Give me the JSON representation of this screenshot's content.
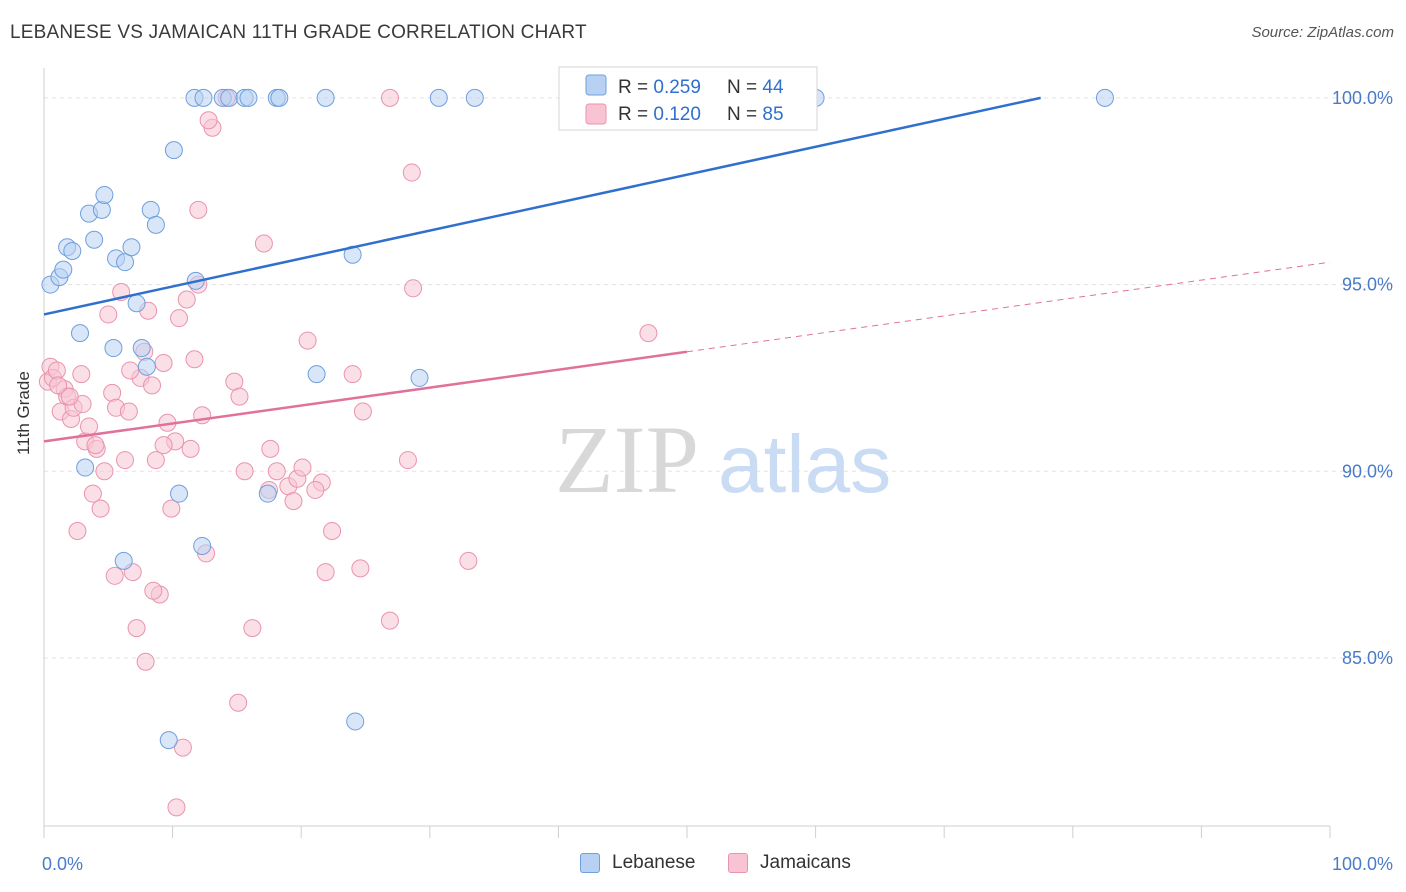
{
  "title": "LEBANESE VS JAMAICAN 11TH GRADE CORRELATION CHART",
  "source": "Source: ZipAtlas.com",
  "watermark": {
    "zip": "ZIP",
    "atlas": "atlas"
  },
  "colors": {
    "lebanese_fill": "#b8d1f3",
    "lebanese_stroke": "#6f9fdd",
    "lebanese_line": "#2f6fce",
    "jamaicans_fill": "#f8c4d3",
    "jamaicans_stroke": "#ea93ae",
    "jamaicans_line": "#e0719a",
    "tick_text": "#4a7bc8",
    "grid": "#e3e3e3"
  },
  "legend": {
    "rows": [
      {
        "r_label": "R = ",
        "r_value": "0.259",
        "n_label": "N = ",
        "n_value": "44"
      },
      {
        "r_label": "R = ",
        "r_value": "0.120",
        "n_label": "N = ",
        "n_value": "85"
      }
    ]
  },
  "chart_data": {
    "type": "scatter",
    "title": "LEBANESE VS JAMAICAN 11TH GRADE CORRELATION CHART",
    "xlabel": "",
    "ylabel": "11th Grade",
    "xlim": [
      0,
      100
    ],
    "ylim": [
      80.5,
      100.8
    ],
    "x_tick_labels": [
      "0.0%",
      "100.0%"
    ],
    "y_ticks": [
      85,
      90,
      95,
      100
    ],
    "y_tick_labels": [
      "85.0%",
      "90.0%",
      "95.0%",
      "100.0%"
    ],
    "grid": true,
    "legend_position": "top-center",
    "series": [
      {
        "name": "Lebanese",
        "r": 0.259,
        "n": 44,
        "trend": {
          "x0": 0,
          "y0": 94.2,
          "x1": 77.5,
          "y1": 100.0,
          "dashed_to": null
        },
        "points": [
          [
            0.5,
            95.0
          ],
          [
            1.2,
            95.2
          ],
          [
            1.5,
            95.4
          ],
          [
            1.8,
            96.0
          ],
          [
            2.2,
            95.9
          ],
          [
            2.8,
            93.7
          ],
          [
            3.2,
            90.1
          ],
          [
            3.5,
            96.9
          ],
          [
            3.9,
            96.2
          ],
          [
            4.5,
            97.0
          ],
          [
            4.7,
            97.4
          ],
          [
            5.4,
            93.3
          ],
          [
            5.6,
            95.7
          ],
          [
            6.3,
            95.6
          ],
          [
            6.8,
            96.0
          ],
          [
            7.2,
            94.5
          ],
          [
            7.6,
            93.3
          ],
          [
            8.0,
            92.8
          ],
          [
            8.3,
            97.0
          ],
          [
            8.7,
            96.6
          ],
          [
            9.7,
            82.8
          ],
          [
            10.1,
            98.6
          ],
          [
            10.5,
            89.4
          ],
          [
            11.8,
            95.1
          ],
          [
            12.3,
            88.0
          ],
          [
            6.2,
            87.6
          ],
          [
            11.7,
            100.0
          ],
          [
            12.4,
            100.0
          ],
          [
            13.9,
            100.0
          ],
          [
            14.4,
            100.0
          ],
          [
            15.6,
            100.0
          ],
          [
            15.9,
            100.0
          ],
          [
            17.4,
            89.4
          ],
          [
            18.1,
            100.0
          ],
          [
            18.3,
            100.0
          ],
          [
            21.2,
            92.6
          ],
          [
            21.9,
            100.0
          ],
          [
            24.0,
            95.8
          ],
          [
            24.2,
            83.3
          ],
          [
            29.2,
            92.5
          ],
          [
            30.7,
            100.0
          ],
          [
            33.5,
            100.0
          ],
          [
            60.0,
            100.0
          ],
          [
            82.5,
            100.0
          ]
        ]
      },
      {
        "name": "Jamaicans",
        "r": 0.12,
        "n": 85,
        "trend": {
          "x0": 0,
          "y0": 90.8,
          "x1": 50,
          "y1": 93.2,
          "dashed_to": {
            "x": 100,
            "y": 95.6
          }
        },
        "points": [
          [
            0.3,
            92.4
          ],
          [
            0.5,
            92.8
          ],
          [
            0.7,
            92.5
          ],
          [
            1.0,
            92.7
          ],
          [
            1.3,
            91.6
          ],
          [
            1.6,
            92.2
          ],
          [
            1.8,
            92.0
          ],
          [
            2.1,
            91.4
          ],
          [
            2.3,
            91.7
          ],
          [
            2.6,
            88.4
          ],
          [
            2.9,
            92.6
          ],
          [
            3.2,
            90.8
          ],
          [
            3.5,
            91.2
          ],
          [
            3.8,
            89.4
          ],
          [
            4.1,
            90.6
          ],
          [
            4.4,
            89.0
          ],
          [
            4.7,
            90.0
          ],
          [
            5.0,
            94.2
          ],
          [
            5.3,
            92.1
          ],
          [
            5.6,
            91.7
          ],
          [
            6.0,
            94.8
          ],
          [
            6.3,
            90.3
          ],
          [
            6.6,
            91.6
          ],
          [
            6.9,
            87.3
          ],
          [
            7.2,
            85.8
          ],
          [
            7.5,
            92.5
          ],
          [
            7.8,
            93.2
          ],
          [
            8.1,
            94.3
          ],
          [
            8.4,
            92.3
          ],
          [
            8.7,
            90.3
          ],
          [
            9.0,
            86.7
          ],
          [
            9.3,
            92.9
          ],
          [
            9.6,
            91.3
          ],
          [
            9.9,
            89.0
          ],
          [
            10.2,
            90.8
          ],
          [
            10.5,
            94.1
          ],
          [
            10.8,
            82.6
          ],
          [
            11.1,
            94.6
          ],
          [
            11.4,
            90.6
          ],
          [
            11.7,
            93.0
          ],
          [
            12.0,
            95.0
          ],
          [
            12.3,
            91.5
          ],
          [
            12.6,
            87.8
          ],
          [
            13.1,
            99.2
          ],
          [
            14.2,
            100.0
          ],
          [
            12.0,
            97.0
          ],
          [
            14.8,
            92.4
          ],
          [
            15.2,
            92.0
          ],
          [
            15.6,
            90.0
          ],
          [
            16.2,
            85.8
          ],
          [
            17.1,
            96.1
          ],
          [
            17.6,
            90.6
          ],
          [
            18.1,
            90.0
          ],
          [
            19.0,
            89.6
          ],
          [
            19.4,
            89.2
          ],
          [
            19.7,
            89.8
          ],
          [
            20.1,
            90.1
          ],
          [
            20.5,
            93.5
          ],
          [
            21.6,
            89.7
          ],
          [
            21.9,
            87.3
          ],
          [
            22.4,
            88.4
          ],
          [
            24.0,
            92.6
          ],
          [
            24.6,
            87.4
          ],
          [
            24.8,
            91.6
          ],
          [
            26.9,
            100.0
          ],
          [
            28.3,
            90.3
          ],
          [
            28.7,
            94.9
          ],
          [
            8.5,
            86.8
          ],
          [
            10.3,
            81.0
          ],
          [
            7.9,
            84.9
          ],
          [
            15.1,
            83.8
          ],
          [
            28.6,
            98.0
          ],
          [
            33.0,
            87.6
          ],
          [
            47.0,
            93.7
          ],
          [
            26.9,
            86.0
          ],
          [
            21.1,
            89.5
          ],
          [
            17.5,
            89.5
          ],
          [
            12.8,
            99.4
          ],
          [
            4.0,
            90.7
          ],
          [
            3.0,
            91.8
          ],
          [
            1.1,
            92.3
          ],
          [
            2.0,
            92.0
          ],
          [
            9.3,
            90.7
          ],
          [
            6.7,
            92.7
          ],
          [
            5.5,
            87.2
          ]
        ]
      }
    ]
  },
  "x_axis": {
    "min_label": "0.0%",
    "max_label": "100.0%"
  },
  "bottom_legend": {
    "items": [
      "Lebanese",
      "Jamaicans"
    ]
  }
}
